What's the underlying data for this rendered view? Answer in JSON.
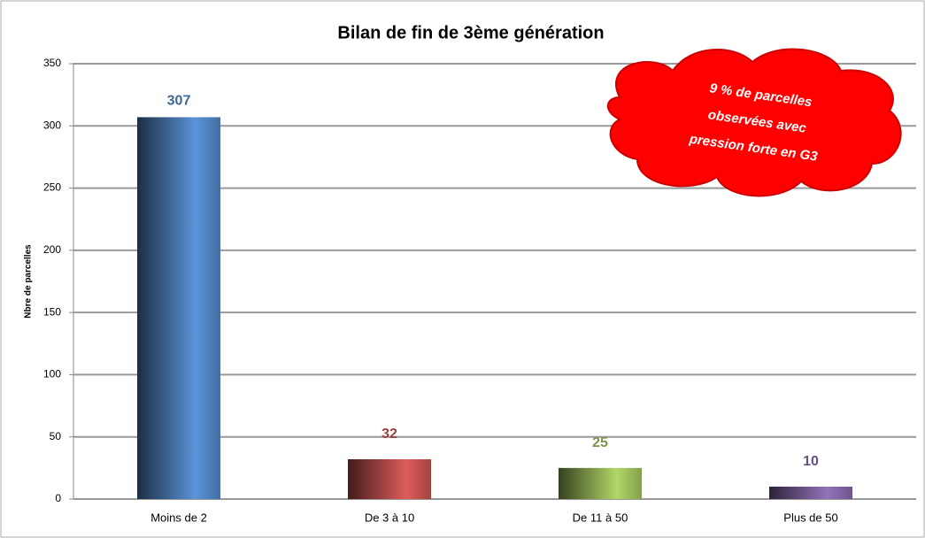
{
  "chart_data": {
    "type": "bar",
    "title": "Bilan de fin de 3ème génération",
    "y_label": "Nbre de parcelles",
    "categories": [
      "Moins de 2",
      "De 3 à 10",
      "De 11 à 50",
      "Plus de 50"
    ],
    "values": [
      307,
      32,
      25,
      10
    ],
    "colors": [
      "#4f81bd",
      "#c0504d",
      "#9bbb59",
      "#8064a2"
    ],
    "ylim": [
      0,
      350
    ],
    "yticks": [
      0,
      50,
      100,
      150,
      200,
      250,
      300,
      350
    ],
    "grid": true,
    "annotation": [
      "9 % de parcelles",
      "observées avec",
      "pression forte en G3"
    ]
  }
}
